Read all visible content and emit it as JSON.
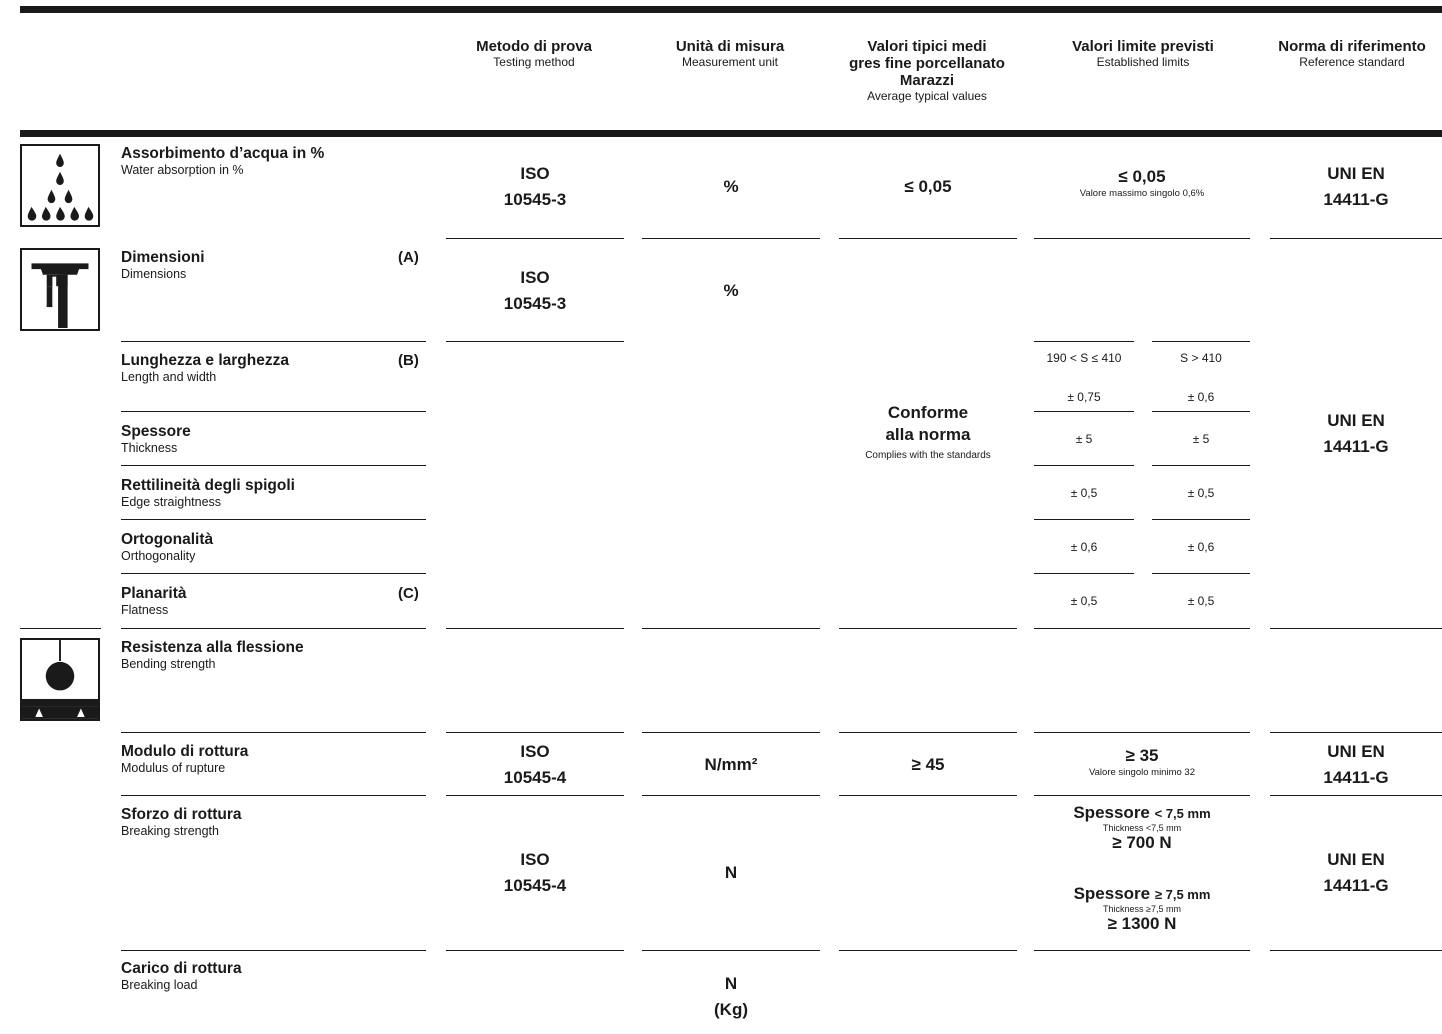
{
  "headers": {
    "method": {
      "it": "Metodo di prova",
      "en": "Testing method"
    },
    "unit": {
      "it": "Unità di misura",
      "en": "Measurement unit"
    },
    "typical": {
      "it1": "Valori tipici medi",
      "it2": "gres fine porcellanato",
      "it3": "Marazzi",
      "en": "Average typical values"
    },
    "limits": {
      "it": "Valori limite previsti",
      "en": "Established limits"
    },
    "standard": {
      "it": "Norma di riferimento",
      "en": "Reference standard"
    }
  },
  "iso3": [
    "ISO",
    "10545-3"
  ],
  "iso4": [
    "ISO",
    "10545-4"
  ],
  "uni": [
    "UNI EN",
    "14411-G"
  ],
  "rows": {
    "water": {
      "it": "Assorbimento d’acqua in %",
      "en": "Water absorption in %",
      "unit": "%",
      "typical": "≤ 0,05",
      "limit": "≤ 0,05",
      "limit_note": "Valore massimo singolo 0,6%"
    },
    "dimensions": {
      "it": "Dimensioni",
      "en": "Dimensions",
      "note": "(A)",
      "unit": "%"
    },
    "length": {
      "it": "Lunghezza e larghezza",
      "en": "Length and width",
      "note": "(B)"
    },
    "thickness": {
      "it": "Spessore",
      "en": "Thickness"
    },
    "edge": {
      "it": "Rettilineità degli spigoli",
      "en": "Edge straightness"
    },
    "orthogonality": {
      "it": "Ortogonalità",
      "en": "Orthogonality"
    },
    "flatness": {
      "it": "Planarità",
      "en": "Flatness",
      "note": "(C)"
    },
    "bending": {
      "it": "Resistenza alla flessione",
      "en": "Bending strength"
    },
    "modulus": {
      "it": "Modulo di rottura",
      "en": "Modulus of rupture",
      "unit": "N/mm²",
      "typical": "≥ 45",
      "limit": "≥ 35",
      "limit_note": "Valore singolo minimo 32"
    },
    "breaking_strength": {
      "it": "Sforzo di rottura",
      "en": "Breaking strength",
      "unit": "N",
      "limit_a_label": "Spessore",
      "limit_a_cond": "< 7,5 mm",
      "limit_a_en": "Thickness <7,5 mm",
      "limit_a_value": "≥ 700 N",
      "limit_b_label": "Spessore",
      "limit_b_cond": "≥ 7,5 mm",
      "limit_b_en": "Thickness ≥7,5 mm",
      "limit_b_value": "≥ 1300 N"
    },
    "breaking_load": {
      "it": "Carico di rottura",
      "en": "Breaking load",
      "unit1": "N",
      "unit2": "(Kg)"
    }
  },
  "conform": {
    "it1": "Conforme",
    "it2": "alla norma",
    "en": "Complies with the standards"
  },
  "size_ranges": {
    "col1": "190 < S ≤ 410",
    "col2": "S > 410",
    "length": [
      "± 0,75",
      "± 0,6"
    ],
    "thickness": [
      "± 5",
      "± 5"
    ],
    "edge": [
      "± 0,5",
      "± 0,5"
    ],
    "orthogonality": [
      "± 0,6",
      "± 0,6"
    ],
    "flatness": [
      "± 0,5",
      "± 0,5"
    ]
  },
  "icons": [
    "water-drops-icon",
    "caliper-icon",
    "bending-test-icon"
  ]
}
